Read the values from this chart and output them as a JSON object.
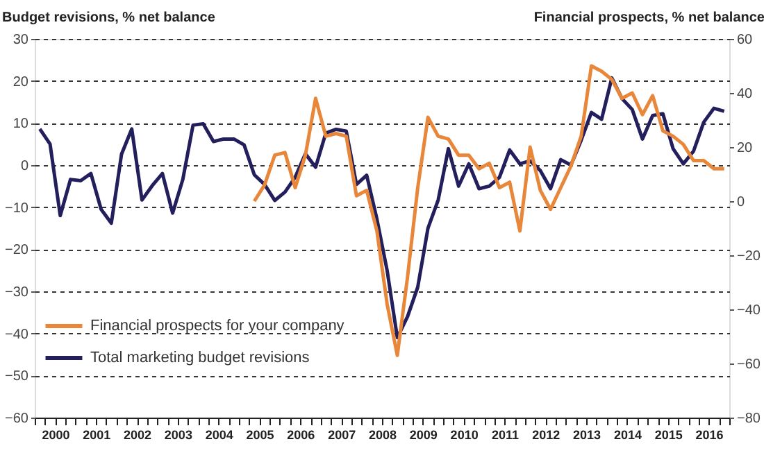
{
  "chart_data": {
    "type": "line",
    "ylabel": "Budget revisions, % net balance",
    "y2label": "Financial prospects, % net balance",
    "x": [
      2000.125,
      2000.375,
      2000.625,
      2000.875,
      2001.125,
      2001.375,
      2001.625,
      2001.875,
      2002.125,
      2002.375,
      2002.625,
      2002.875,
      2003.125,
      2003.375,
      2003.625,
      2003.875,
      2004.125,
      2004.375,
      2004.625,
      2004.875,
      2005.125,
      2005.375,
      2005.625,
      2005.875,
      2006.125,
      2006.375,
      2006.625,
      2006.875,
      2007.125,
      2007.375,
      2007.625,
      2007.875,
      2008.125,
      2008.375,
      2008.625,
      2008.875,
      2009.125,
      2009.375,
      2009.625,
      2009.875,
      2010.125,
      2010.375,
      2010.625,
      2010.875,
      2011.125,
      2011.375,
      2011.625,
      2011.875,
      2012.125,
      2012.375,
      2012.625,
      2012.875,
      2013.125,
      2013.375,
      2013.625,
      2013.875,
      2014.125,
      2014.375,
      2014.625,
      2014.875,
      2015.125,
      2015.375,
      2015.625,
      2015.875,
      2016.125,
      2016.375,
      2016.625,
      2016.875
    ],
    "series": [
      {
        "name": "Financial prospects for your company",
        "color": "#e8873a",
        "axis": "y2",
        "values": [
          null,
          null,
          null,
          null,
          null,
          null,
          null,
          null,
          null,
          null,
          null,
          null,
          null,
          null,
          null,
          null,
          null,
          null,
          null,
          null,
          null,
          0,
          6,
          17,
          18,
          5,
          17,
          38,
          24,
          25,
          24,
          2,
          4,
          -11,
          -38,
          -57,
          -28,
          5,
          31,
          24,
          23,
          17,
          17,
          12,
          14,
          5,
          7,
          -11,
          20,
          4,
          -3,
          5,
          13,
          24,
          50,
          48,
          45,
          38,
          40,
          32,
          39,
          26,
          24,
          21,
          15,
          15,
          12,
          12
        ]
      },
      {
        "name": "Total marketing budget revisions",
        "color": "#231f5c",
        "values": [
          8.6,
          5,
          -12,
          -3.4,
          -3.7,
          -2,
          -10.5,
          -13.8,
          2.6,
          8.6,
          -8.3,
          -4.9,
          -2,
          -11.4,
          -3.4,
          9.5,
          9.8,
          5.6,
          6.2,
          6.2,
          4.8,
          -2.3,
          -4.6,
          -8.4,
          -6.4,
          -2.9,
          2.7,
          -0.5,
          7.6,
          8.5,
          8.1,
          -4.6,
          -2.4,
          -12.8,
          -25,
          -41,
          -36,
          -29,
          -15,
          -8.3,
          3.9,
          -5,
          0.3,
          -5.6,
          -5,
          -2.9,
          3.6,
          0.3,
          1,
          -1.3,
          -5.6,
          1.3,
          0,
          5.9,
          12.5,
          10.9,
          20.7,
          15.8,
          13.2,
          6.2,
          11.8,
          12.2,
          3.9,
          0.3,
          3.3,
          10.2,
          13.5,
          12.8
        ]
      }
    ],
    "xlim": [
      2000,
      2017
    ],
    "xticks": [
      {
        "value": 2000,
        "label": null
      },
      {
        "value": 2000.25,
        "label": null
      },
      {
        "value": 2000.5,
        "label": "2000"
      },
      {
        "value": 2000.75,
        "label": null
      },
      {
        "value": 2001,
        "label": null
      },
      {
        "value": 2001.25,
        "label": null
      },
      {
        "value": 2001.5,
        "label": "2001"
      },
      {
        "value": 2001.75,
        "label": null
      },
      {
        "value": 2002,
        "label": null
      },
      {
        "value": 2002.25,
        "label": null
      },
      {
        "value": 2002.5,
        "label": "2002"
      },
      {
        "value": 2002.75,
        "label": null
      },
      {
        "value": 2003,
        "label": null
      },
      {
        "value": 2003.25,
        "label": null
      },
      {
        "value": 2003.5,
        "label": "2003"
      },
      {
        "value": 2003.75,
        "label": null
      },
      {
        "value": 2004,
        "label": null
      },
      {
        "value": 2004.25,
        "label": null
      },
      {
        "value": 2004.5,
        "label": "2004"
      },
      {
        "value": 2004.75,
        "label": null
      },
      {
        "value": 2005,
        "label": null
      },
      {
        "value": 2005.25,
        "label": null
      },
      {
        "value": 2005.5,
        "label": "2005"
      },
      {
        "value": 2005.75,
        "label": null
      },
      {
        "value": 2006,
        "label": null
      },
      {
        "value": 2006.25,
        "label": null
      },
      {
        "value": 2006.5,
        "label": "2006"
      },
      {
        "value": 2006.75,
        "label": null
      },
      {
        "value": 2007,
        "label": null
      },
      {
        "value": 2007.25,
        "label": null
      },
      {
        "value": 2007.5,
        "label": "2007"
      },
      {
        "value": 2007.75,
        "label": null
      },
      {
        "value": 2008,
        "label": null
      },
      {
        "value": 2008.25,
        "label": null
      },
      {
        "value": 2008.5,
        "label": "2008"
      },
      {
        "value": 2008.75,
        "label": null
      },
      {
        "value": 2009,
        "label": null
      },
      {
        "value": 2009.25,
        "label": null
      },
      {
        "value": 2009.5,
        "label": "2009"
      },
      {
        "value": 2009.75,
        "label": null
      },
      {
        "value": 2010,
        "label": null
      },
      {
        "value": 2010.25,
        "label": null
      },
      {
        "value": 2010.5,
        "label": "2010"
      },
      {
        "value": 2010.75,
        "label": null
      },
      {
        "value": 2011,
        "label": null
      },
      {
        "value": 2011.25,
        "label": null
      },
      {
        "value": 2011.5,
        "label": "2011"
      },
      {
        "value": 2011.75,
        "label": null
      },
      {
        "value": 2012,
        "label": null
      },
      {
        "value": 2012.25,
        "label": null
      },
      {
        "value": 2012.5,
        "label": "2012"
      },
      {
        "value": 2012.75,
        "label": null
      },
      {
        "value": 2013,
        "label": null
      },
      {
        "value": 2013.25,
        "label": null
      },
      {
        "value": 2013.5,
        "label": "2013"
      },
      {
        "value": 2013.75,
        "label": null
      },
      {
        "value": 2014,
        "label": null
      },
      {
        "value": 2014.25,
        "label": null
      },
      {
        "value": 2014.5,
        "label": "2014"
      },
      {
        "value": 2014.75,
        "label": null
      },
      {
        "value": 2015,
        "label": null
      },
      {
        "value": 2015.25,
        "label": null
      },
      {
        "value": 2015.5,
        "label": "2015"
      },
      {
        "value": 2015.75,
        "label": null
      },
      {
        "value": 2016,
        "label": null
      },
      {
        "value": 2016.25,
        "label": null
      },
      {
        "value": 2016.5,
        "label": "2016"
      },
      {
        "value": 2016.75,
        "label": null
      },
      {
        "value": 2017,
        "label": null
      }
    ],
    "ylim": [
      -60,
      30
    ],
    "yticks": [
      -60,
      -50,
      -40,
      -30,
      -20,
      -10,
      0,
      10,
      20,
      30
    ],
    "y2lim": [
      -80,
      60
    ],
    "y2ticks": [
      -80,
      -60,
      -40,
      -20,
      0,
      20,
      40,
      60
    ],
    "grid": "y",
    "legend": "bottom left",
    "marker": "none",
    "line_style": "solid"
  }
}
